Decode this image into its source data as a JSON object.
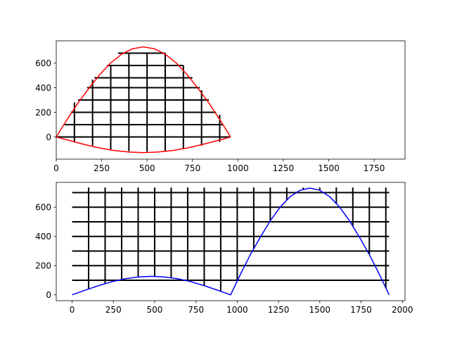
{
  "chart_data": [
    {
      "type": "line",
      "title": "",
      "xlabel": "",
      "ylabel": "",
      "xlim": [
        0,
        1920
      ],
      "ylim": [
        -180,
        780
      ],
      "xticks": [
        0,
        250,
        500,
        750,
        1000,
        1250,
        1500,
        1750
      ],
      "yticks": [
        0,
        200,
        400,
        600
      ],
      "series": [
        {
          "color": "#ff0000",
          "x": [
            0,
            60,
            120,
            180,
            240,
            300,
            360,
            420,
            480,
            540,
            600,
            660,
            720,
            780,
            840,
            900,
            960
          ],
          "y": [
            0,
            142,
            276,
            395,
            507,
            601,
            672,
            716,
            731,
            716,
            672,
            601,
            507,
            395,
            276,
            142,
            0
          ]
        },
        {
          "color": "#ff0000",
          "x": [
            0,
            80,
            160,
            240,
            320,
            400,
            480,
            560,
            640,
            720,
            800,
            880,
            960
          ],
          "y": [
            0,
            -32,
            -63,
            -90,
            -110,
            -122,
            -127,
            -122,
            -110,
            -90,
            -63,
            -32,
            0
          ]
        }
      ],
      "grid_segments": {
        "color": "#000000",
        "vertical": [
          {
            "x": 100,
            "y0": -40,
            "y1": 280
          },
          {
            "x": 200,
            "y0": -70,
            "y1": 465
          },
          {
            "x": 300,
            "y0": -100,
            "y1": 580
          },
          {
            "x": 400,
            "y0": -115,
            "y1": 680
          },
          {
            "x": 500,
            "y0": -120,
            "y1": 680
          },
          {
            "x": 600,
            "y0": -115,
            "y1": 680
          },
          {
            "x": 700,
            "y0": -100,
            "y1": 580
          },
          {
            "x": 800,
            "y0": -70,
            "y1": 380
          },
          {
            "x": 900,
            "y0": -40,
            "y1": 180
          }
        ],
        "horizontal": [
          {
            "y": 0,
            "x0": 0,
            "x1": 960
          },
          {
            "y": 100,
            "x0": 40,
            "x1": 920
          },
          {
            "y": 200,
            "x0": 80,
            "x1": 880
          },
          {
            "y": 300,
            "x0": 120,
            "x1": 840
          },
          {
            "y": 400,
            "x0": 170,
            "x1": 790
          },
          {
            "y": 480,
            "x0": 210,
            "x1": 750
          },
          {
            "y": 580,
            "x0": 280,
            "x1": 700
          },
          {
            "y": 680,
            "x0": 340,
            "x1": 600
          }
        ]
      }
    },
    {
      "type": "line",
      "title": "",
      "xlabel": "",
      "ylabel": "",
      "xlim": [
        -96,
        2016
      ],
      "ylim": [
        -40,
        770
      ],
      "xticks": [
        0,
        250,
        500,
        750,
        1000,
        1250,
        1500,
        1750,
        2000
      ],
      "yticks": [
        0,
        200,
        400,
        600
      ],
      "series": [
        {
          "color": "#0000ff",
          "x": [
            0,
            80,
            160,
            240,
            320,
            400,
            480,
            560,
            640,
            720,
            800,
            880,
            960,
            1020,
            1080,
            1140,
            1200,
            1260,
            1320,
            1380,
            1440,
            1500,
            1560,
            1620,
            1680,
            1740,
            1800,
            1860,
            1920
          ],
          "y": [
            0,
            32,
            63,
            90,
            110,
            122,
            127,
            122,
            110,
            90,
            63,
            32,
            0,
            142,
            276,
            395,
            507,
            601,
            672,
            716,
            731,
            716,
            672,
            601,
            507,
            395,
            276,
            142,
            0
          ]
        }
      ],
      "grid_segments": {
        "color": "#000000",
        "vertical_x": [
          100,
          200,
          300,
          400,
          500,
          600,
          700,
          800,
          900,
          1000,
          1100,
          1200,
          1300,
          1400,
          1500,
          1600,
          1700,
          1800,
          1900
        ],
        "vertical_y_top": 735,
        "horizontal_y": [
          100,
          200,
          300,
          400,
          500,
          600,
          700
        ],
        "horizontal_x": [
          0,
          1920
        ]
      }
    }
  ]
}
